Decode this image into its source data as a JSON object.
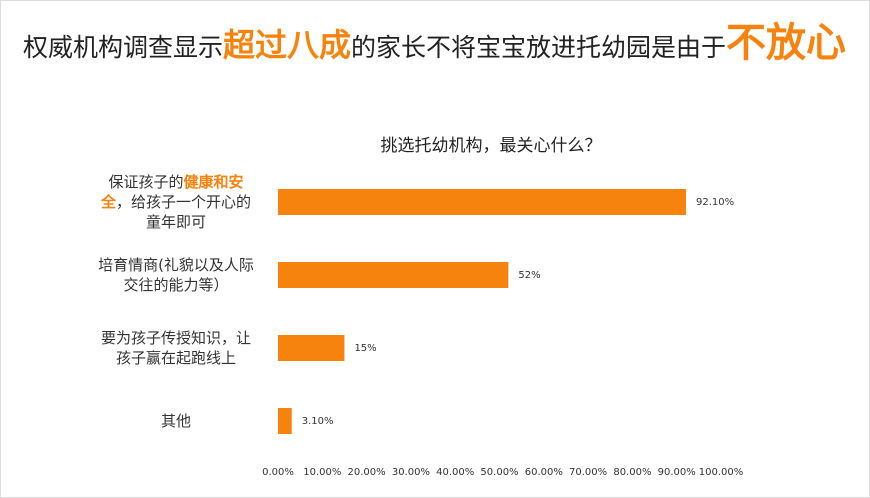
{
  "headline": [
    "权威机构调查显示",
    "超过八成",
    "的家长不将宝宝放进托幼园是由于",
    "不放心"
  ],
  "chart_data": {
    "type": "hbar",
    "title": "挑选托幼机构，最关心什么？",
    "categories": [
      [
        "保证孩子的",
        "健康和安全",
        "，给孩子一个开心的童年即可"
      ],
      "培育情商(礼貌以及人际交往的能力等）",
      "要为孩子传授知识，让孩子赢在起跑线上",
      "其他"
    ],
    "values": [
      92.1,
      52,
      15,
      3.1
    ],
    "value_labels": [
      "92.10%",
      "52%",
      "15%",
      "3.10%"
    ],
    "color": "#f7830f",
    "emphasis_color": "#f7830f",
    "xlim": [
      0,
      100
    ],
    "xticks": [
      {
        "value": 0,
        "label": "0.00%"
      },
      {
        "value": 10,
        "label": "10.00%"
      },
      {
        "value": 20,
        "label": "20.00%"
      },
      {
        "value": 30,
        "label": "30.00%"
      },
      {
        "value": 40,
        "label": "40.00%"
      },
      {
        "value": 50,
        "label": "50.00%"
      },
      {
        "value": 60,
        "label": "60.00%"
      },
      {
        "value": 70,
        "label": "70.00%"
      },
      {
        "value": 80,
        "label": "80.00%"
      },
      {
        "value": 90,
        "label": "90.00%"
      },
      {
        "value": 100,
        "label": "100.00%"
      }
    ],
    "grid": false
  }
}
